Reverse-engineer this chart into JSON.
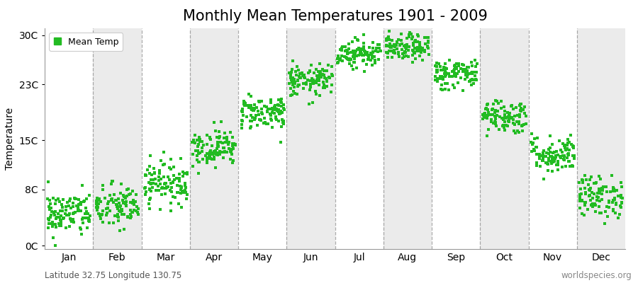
{
  "title": "Monthly Mean Temperatures 1901 - 2009",
  "ylabel": "Temperature",
  "ytick_labels": [
    "0C",
    "8C",
    "15C",
    "23C",
    "30C"
  ],
  "ytick_values": [
    0,
    8,
    15,
    23,
    30
  ],
  "ylim": [
    -0.5,
    31
  ],
  "months": [
    "Jan",
    "Feb",
    "Mar",
    "Apr",
    "May",
    "Jun",
    "Jul",
    "Aug",
    "Sep",
    "Oct",
    "Nov",
    "Dec"
  ],
  "monthly_means": [
    4.5,
    5.5,
    9.0,
    14.0,
    19.0,
    23.5,
    27.5,
    28.2,
    24.5,
    18.5,
    13.0,
    7.0
  ],
  "monthly_stds": [
    1.6,
    1.6,
    1.5,
    1.3,
    1.2,
    1.1,
    1.0,
    0.9,
    1.1,
    1.2,
    1.3,
    1.5
  ],
  "n_years": 109,
  "dot_color": "#22bb22",
  "dot_size": 6,
  "background_colors": [
    "#ffffff",
    "#ebebeb"
  ],
  "grid_color": "#777777",
  "title_fontsize": 15,
  "label_fontsize": 10,
  "tick_fontsize": 10,
  "legend_label": "Mean Temp",
  "footer_left": "Latitude 32.75 Longitude 130.75",
  "footer_right": "worldspecies.org"
}
